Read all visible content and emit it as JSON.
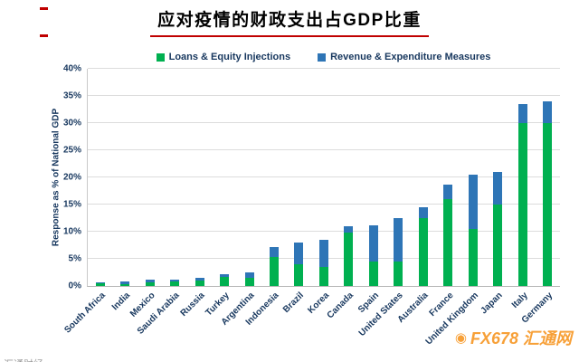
{
  "title": "应对疫情的财政支出占GDP比重",
  "legend": [
    {
      "label": "Loans & Equity Injections",
      "color": "#00B050"
    },
    {
      "label": "Revenue & Expenditure Measures",
      "color": "#2E75B6"
    }
  ],
  "ylabel": "Response as % of National GDP",
  "watermark": {
    "text": "FX678 汇通网",
    "icon": "◉",
    "color": "#F7941D"
  },
  "footer_partial": "汇通财经",
  "chart_data": {
    "type": "bar",
    "stacked": true,
    "title": "应对疫情的财政支出占GDP比重",
    "xlabel": "",
    "ylabel": "Response as % of National GDP",
    "ylim": [
      0,
      40
    ],
    "ytick_step": 5,
    "ytick_suffix": "%",
    "grid": true,
    "legend_position": "top",
    "categories": [
      "South Africa",
      "India",
      "Mexico",
      "Saudi Arabia",
      "Russia",
      "Turkey",
      "Argentina",
      "Indonesia",
      "Brazil",
      "Korea",
      "Canada",
      "Spain",
      "United States",
      "Australia",
      "France",
      "United Kingdom",
      "Japan",
      "Italy",
      "Germany"
    ],
    "series": [
      {
        "name": "Loans & Equity Injections",
        "color": "#00B050",
        "values": [
          0.5,
          0.3,
          0.6,
          0.9,
          1.0,
          1.6,
          1.5,
          5.3,
          4.0,
          3.5,
          9.8,
          4.5,
          4.5,
          12.5,
          16.0,
          10.5,
          15.0,
          30.0,
          30.0
        ]
      },
      {
        "name": "Revenue & Expenditure Measures",
        "color": "#2E75B6",
        "values": [
          0.1,
          0.5,
          0.5,
          0.3,
          0.5,
          0.5,
          1.0,
          1.8,
          4.0,
          5.0,
          1.2,
          6.6,
          8.0,
          2.0,
          2.7,
          10.0,
          6.0,
          3.5,
          4.0
        ]
      }
    ],
    "totals": [
      0.6,
      0.8,
      1.1,
      1.2,
      1.5,
      2.1,
      2.5,
      7.1,
      8.0,
      8.5,
      11.0,
      11.1,
      12.5,
      14.5,
      18.7,
      20.5,
      21.0,
      33.5,
      34.0
    ]
  }
}
